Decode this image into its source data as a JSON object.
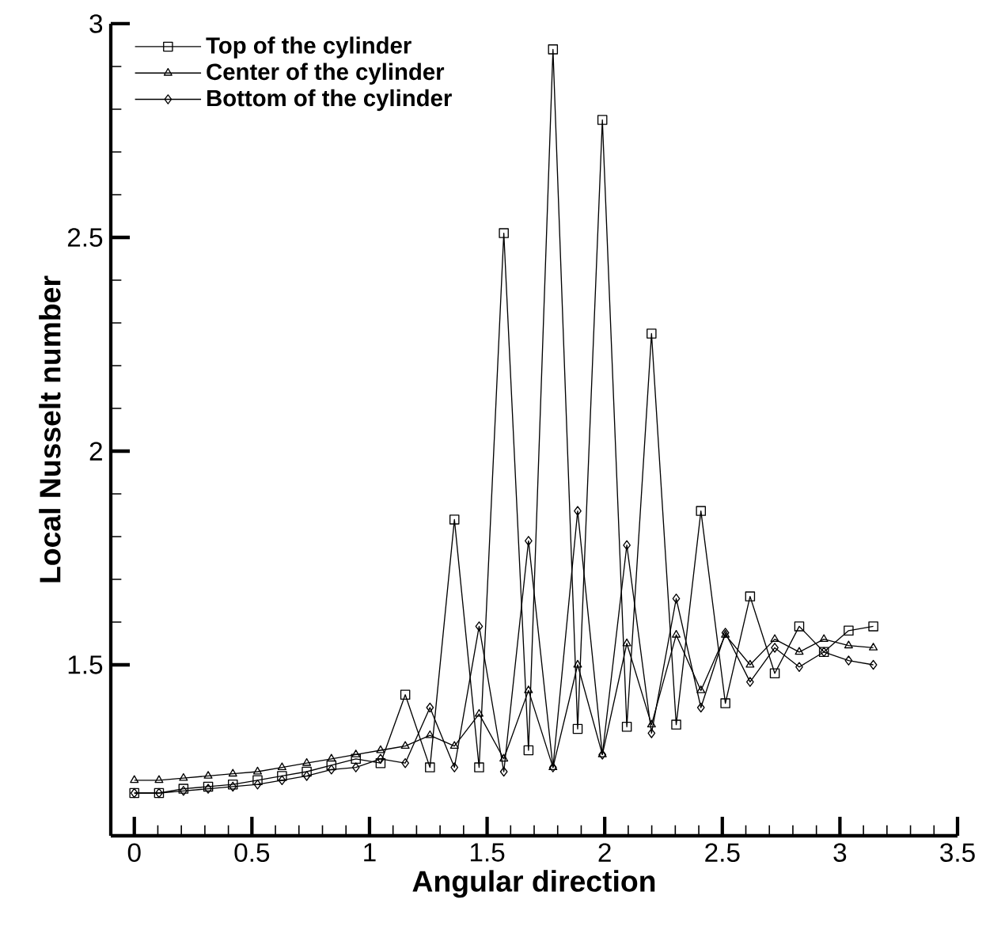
{
  "chart_data": {
    "type": "line",
    "xlabel": "Angular direction",
    "ylabel": "Local Nusselt number",
    "x": [
      0,
      0.105,
      0.209,
      0.314,
      0.419,
      0.524,
      0.628,
      0.733,
      0.838,
      0.942,
      1.047,
      1.152,
      1.257,
      1.361,
      1.466,
      1.571,
      1.676,
      1.78,
      1.885,
      1.99,
      2.094,
      2.199,
      2.304,
      2.409,
      2.513,
      2.618,
      2.723,
      2.827,
      2.932,
      3.037,
      3.142
    ],
    "series": [
      {
        "name": "Top of the cylinder",
        "color": "#000000",
        "marker": "square",
        "values": [
          1.2,
          1.2,
          1.21,
          1.215,
          1.22,
          1.23,
          1.24,
          1.25,
          1.265,
          1.28,
          1.27,
          1.43,
          1.26,
          1.84,
          1.26,
          2.51,
          1.3,
          2.94,
          1.35,
          2.775,
          1.355,
          2.275,
          1.36,
          1.86,
          1.41,
          1.66,
          1.48,
          1.59,
          1.53,
          1.58,
          1.59
        ]
      },
      {
        "name": "Center of the cylinder",
        "color": "#000000",
        "marker": "triangle",
        "values": [
          1.23,
          1.23,
          1.235,
          1.24,
          1.245,
          1.25,
          1.26,
          1.27,
          1.28,
          1.29,
          1.3,
          1.31,
          1.335,
          1.31,
          1.385,
          1.28,
          1.44,
          1.26,
          1.5,
          1.29,
          1.55,
          1.36,
          1.57,
          1.44,
          1.57,
          1.5,
          1.56,
          1.53,
          1.56,
          1.545,
          1.54
        ]
      },
      {
        "name": "Bottom of the cylinder",
        "color": "#000000",
        "marker": "diamond",
        "values": [
          1.2,
          1.2,
          1.205,
          1.21,
          1.215,
          1.22,
          1.23,
          1.24,
          1.255,
          1.26,
          1.28,
          1.27,
          1.4,
          1.26,
          1.59,
          1.25,
          1.79,
          1.26,
          1.86,
          1.29,
          1.78,
          1.34,
          1.655,
          1.4,
          1.575,
          1.46,
          1.54,
          1.495,
          1.53,
          1.51,
          1.5
        ]
      }
    ],
    "xlim": [
      -0.1,
      3.5
    ],
    "ylim": [
      1.1,
      3
    ],
    "xticks": [
      0,
      0.5,
      1,
      1.5,
      2,
      2.5,
      3,
      3.5
    ],
    "yticks": [
      1.5,
      2,
      2.5,
      3
    ],
    "legend": "top left",
    "line_style": "solid"
  }
}
